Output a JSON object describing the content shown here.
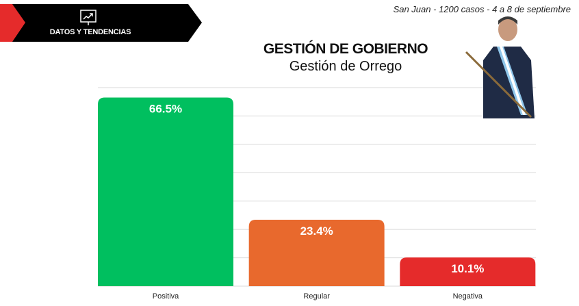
{
  "header": {
    "banner_label": "DATOS Y TENDENCIAS",
    "info": "San Juan - 1200 casos - 4 a 8 de septiembre"
  },
  "chart_data": {
    "type": "bar",
    "title": "GESTIÓN DE GOBIERNO",
    "subtitle": "Gestión de Orrego",
    "categories": [
      "Positiva",
      "Regular",
      "Negativa"
    ],
    "values": [
      66.5,
      23.4,
      10.1
    ],
    "labels": [
      "66.5%",
      "23.4%",
      "10.1%"
    ],
    "colors": [
      "#00bf5f",
      "#e8692d",
      "#e52b2b"
    ],
    "ylim": [
      0,
      70
    ],
    "grid": true,
    "xlabel": "",
    "ylabel": ""
  },
  "colors": {
    "banner": "#000000",
    "accent": "#e52b2b"
  }
}
